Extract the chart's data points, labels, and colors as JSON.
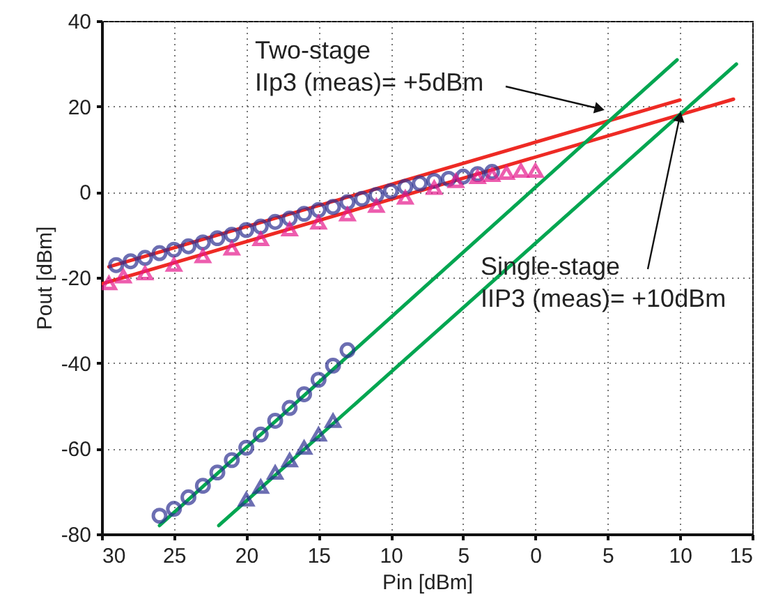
{
  "chart_data": {
    "type": "scatter",
    "xlabel": "Pin [dBm]",
    "ylabel": "Pout [dBm]",
    "xlim": [
      -30,
      15
    ],
    "ylim": [
      -80,
      40
    ],
    "xticks": [
      {
        "value": -30,
        "label": "30"
      },
      {
        "value": -25,
        "label": "25"
      },
      {
        "value": -20,
        "label": "20"
      },
      {
        "value": -15,
        "label": "15"
      },
      {
        "value": -10,
        "label": "10"
      },
      {
        "value": -5,
        "label": "5"
      },
      0,
      5,
      10,
      15
    ],
    "yticks": [
      -80,
      -60,
      -40,
      -20,
      0,
      20,
      40
    ],
    "grid": true,
    "annotations": [
      {
        "text": "Two-stage\nIIp3 (meas)= +5dBm",
        "x": 5,
        "y": 19
      },
      {
        "text": "Single-stage\nIIP3 (meas)= +10dBm",
        "x": 10.1,
        "y": 19.5
      }
    ],
    "series": [
      {
        "type": "line",
        "color": "#ee2a24",
        "x": [
          -29.5,
          10
        ],
        "values": [
          -17.5,
          21.5
        ]
      },
      {
        "type": "line",
        "color": "#ee2a24",
        "x": [
          -30,
          13.7
        ],
        "values": [
          -21.5,
          21.7
        ]
      },
      {
        "type": "line",
        "color": "#00a651",
        "x": [
          -26,
          9.8
        ],
        "values": [
          -78,
          30.9
        ]
      },
      {
        "type": "line",
        "color": "#00a651",
        "x": [
          -21.9,
          13.9
        ],
        "values": [
          -78,
          29.9
        ]
      },
      {
        "type": "scatter",
        "marker": "circle",
        "color": "#2e3192",
        "x": [
          -29,
          -28,
          -27,
          -26,
          -25,
          -24,
          -23,
          -22,
          -21,
          -20,
          -19,
          -18,
          -17,
          -16,
          -15,
          -14,
          -13,
          -12,
          -11,
          -10,
          -9,
          -8,
          -7,
          -6,
          -5,
          -4,
          -3
        ],
        "values": [
          -17.1,
          -16.2,
          -15.4,
          -14.3,
          -13.5,
          -12.7,
          -11.8,
          -10.8,
          -10,
          -8.9,
          -8.1,
          -7,
          -6.2,
          -5.1,
          -4.2,
          -3.5,
          -2.4,
          -1.6,
          -0.7,
          0.2,
          1.2,
          2,
          2.6,
          3.1,
          3.6,
          4.2,
          4.7
        ]
      },
      {
        "type": "scatter",
        "marker": "triangle",
        "color": "#e6198c",
        "x": [
          -29.5,
          -28.5,
          -27,
          -25,
          -23,
          -21,
          -19,
          -17,
          -15,
          -13,
          -11,
          -9,
          -7,
          -5.5,
          -4,
          -3,
          -2,
          -1,
          0
        ],
        "values": [
          -21.3,
          -19.7,
          -19,
          -17,
          -15,
          -13.2,
          -11,
          -8.7,
          -7.1,
          -5.2,
          -3.2,
          -1.3,
          1,
          2.6,
          3.5,
          4,
          4.5,
          5,
          5
        ]
      },
      {
        "type": "scatter",
        "marker": "circle",
        "color": "#2e3192",
        "x": [
          -26,
          -25,
          -24,
          -23,
          -22,
          -21,
          -20,
          -19,
          -18,
          -17,
          -16,
          -15,
          -14,
          -13
        ],
        "values": [
          -75.7,
          -74.1,
          -71.4,
          -68.7,
          -65.6,
          -62.7,
          -59.8,
          -56.7,
          -53.5,
          -50.5,
          -47.3,
          -43.9,
          -40.6,
          -37.0
        ]
      },
      {
        "type": "scatter",
        "marker": "triangle",
        "color": "#2e3192",
        "x": [
          -20,
          -19,
          -18,
          -17,
          -16,
          -15,
          -14
        ],
        "values": [
          -71.9,
          -68.9,
          -65.6,
          -62.7,
          -59.8,
          -56.7,
          -53.5
        ]
      }
    ]
  }
}
